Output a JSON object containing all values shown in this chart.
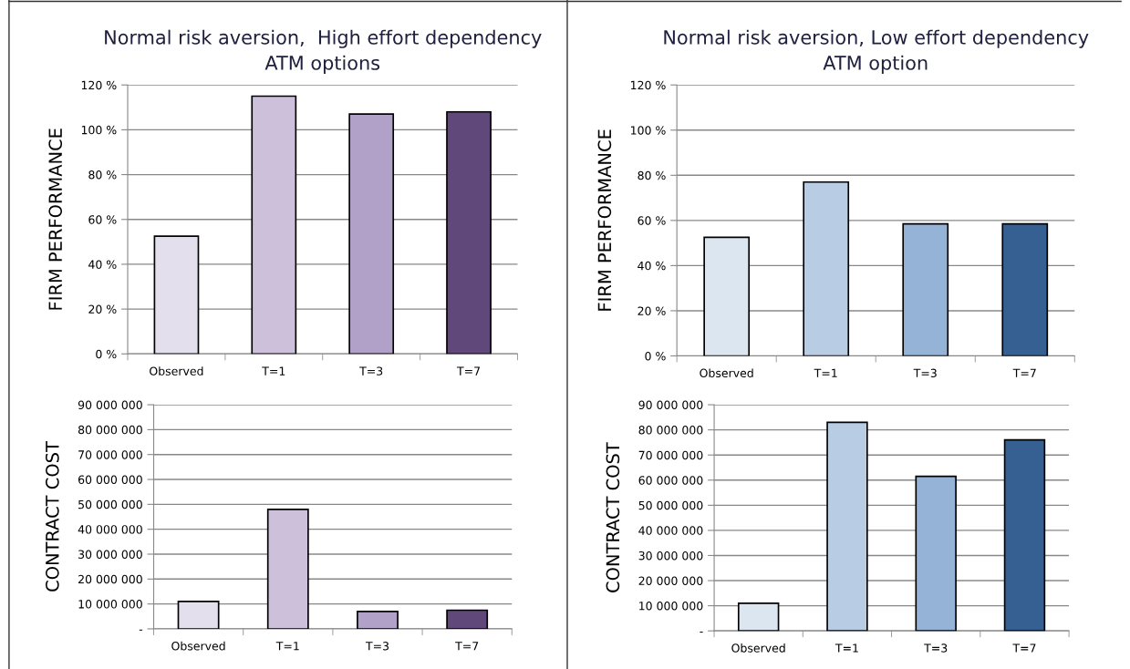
{
  "chart_data": [
    {
      "type": "bar",
      "title": "Normal risk aversion,  High effort dependency\nATM options",
      "ylabel": "FIRM PERFORMANCE",
      "categories": [
        "Observed",
        "T=1",
        "T=3",
        "T=7"
      ],
      "values": [
        52.5,
        115,
        107,
        108
      ],
      "colors": [
        "#e4dfec",
        "#ccc0da",
        "#b1a0c7",
        "#60497a"
      ],
      "ylim": [
        0,
        120
      ],
      "yticks": [
        {
          "value": 0,
          "label": "0 %"
        },
        {
          "value": 20,
          "label": "20 %"
        },
        {
          "value": 40,
          "label": "40 %"
        },
        {
          "value": 60,
          "label": "60 %"
        },
        {
          "value": 80,
          "label": "80 %"
        },
        {
          "value": 100,
          "label": "100 %"
        },
        {
          "value": 120,
          "label": "120 %"
        }
      ],
      "grid": "y",
      "legend": false
    },
    {
      "type": "bar",
      "title": "Normal risk aversion, Low effort dependency\nATM option",
      "ylabel": "FIRM PERFORMANCE",
      "categories": [
        "Observed",
        "T=1",
        "T=3",
        "T=7"
      ],
      "values": [
        52.5,
        77,
        58.5,
        58.5
      ],
      "colors": [
        "#dce6f1",
        "#b8cce4",
        "#95b3d7",
        "#366092"
      ],
      "ylim": [
        0,
        120
      ],
      "yticks": [
        {
          "value": 0,
          "label": "0 %"
        },
        {
          "value": 20,
          "label": "20 %"
        },
        {
          "value": 40,
          "label": "40 %"
        },
        {
          "value": 60,
          "label": "60 %"
        },
        {
          "value": 80,
          "label": "80 %"
        },
        {
          "value": 100,
          "label": "100 %"
        },
        {
          "value": 120,
          "label": "120 %"
        }
      ],
      "grid": "y",
      "legend": false
    },
    {
      "type": "bar",
      "ylabel": "CONTRACT COST",
      "categories": [
        "Observed",
        "T=1",
        "T=3",
        "T=7"
      ],
      "values": [
        11000000,
        48000000,
        7000000,
        7500000
      ],
      "colors": [
        "#e4dfec",
        "#ccc0da",
        "#b1a0c7",
        "#60497a"
      ],
      "ylim": [
        0,
        90000000
      ],
      "yticks": [
        {
          "value": 0,
          "label": "-"
        },
        {
          "value": 10000000,
          "label": "10 000 000"
        },
        {
          "value": 20000000,
          "label": "20 000 000"
        },
        {
          "value": 30000000,
          "label": "30 000 000"
        },
        {
          "value": 40000000,
          "label": "40 000 000"
        },
        {
          "value": 50000000,
          "label": "50 000 000"
        },
        {
          "value": 60000000,
          "label": "60 000 000"
        },
        {
          "value": 70000000,
          "label": "70 000 000"
        },
        {
          "value": 80000000,
          "label": "80 000 000"
        },
        {
          "value": 90000000,
          "label": "90 000 000"
        }
      ],
      "grid": "y",
      "legend": false
    },
    {
      "type": "bar",
      "ylabel": "CONTRACT COST",
      "categories": [
        "Observed",
        "T=1",
        "T=3",
        "T=7"
      ],
      "values": [
        11000000,
        83000000,
        61500000,
        76000000
      ],
      "colors": [
        "#dce6f1",
        "#b8cce4",
        "#95b3d7",
        "#366092"
      ],
      "ylim": [
        0,
        90000000
      ],
      "yticks": [
        {
          "value": 0,
          "label": "-"
        },
        {
          "value": 10000000,
          "label": "10 000 000"
        },
        {
          "value": 20000000,
          "label": "20 000 000"
        },
        {
          "value": 30000000,
          "label": "30 000 000"
        },
        {
          "value": 40000000,
          "label": "40 000 000"
        },
        {
          "value": 50000000,
          "label": "50 000 000"
        },
        {
          "value": 60000000,
          "label": "60 000 000"
        },
        {
          "value": 70000000,
          "label": "70 000 000"
        },
        {
          "value": 80000000,
          "label": "80 000 000"
        },
        {
          "value": 90000000,
          "label": "90 000 000"
        }
      ],
      "grid": "y",
      "legend": false
    }
  ]
}
